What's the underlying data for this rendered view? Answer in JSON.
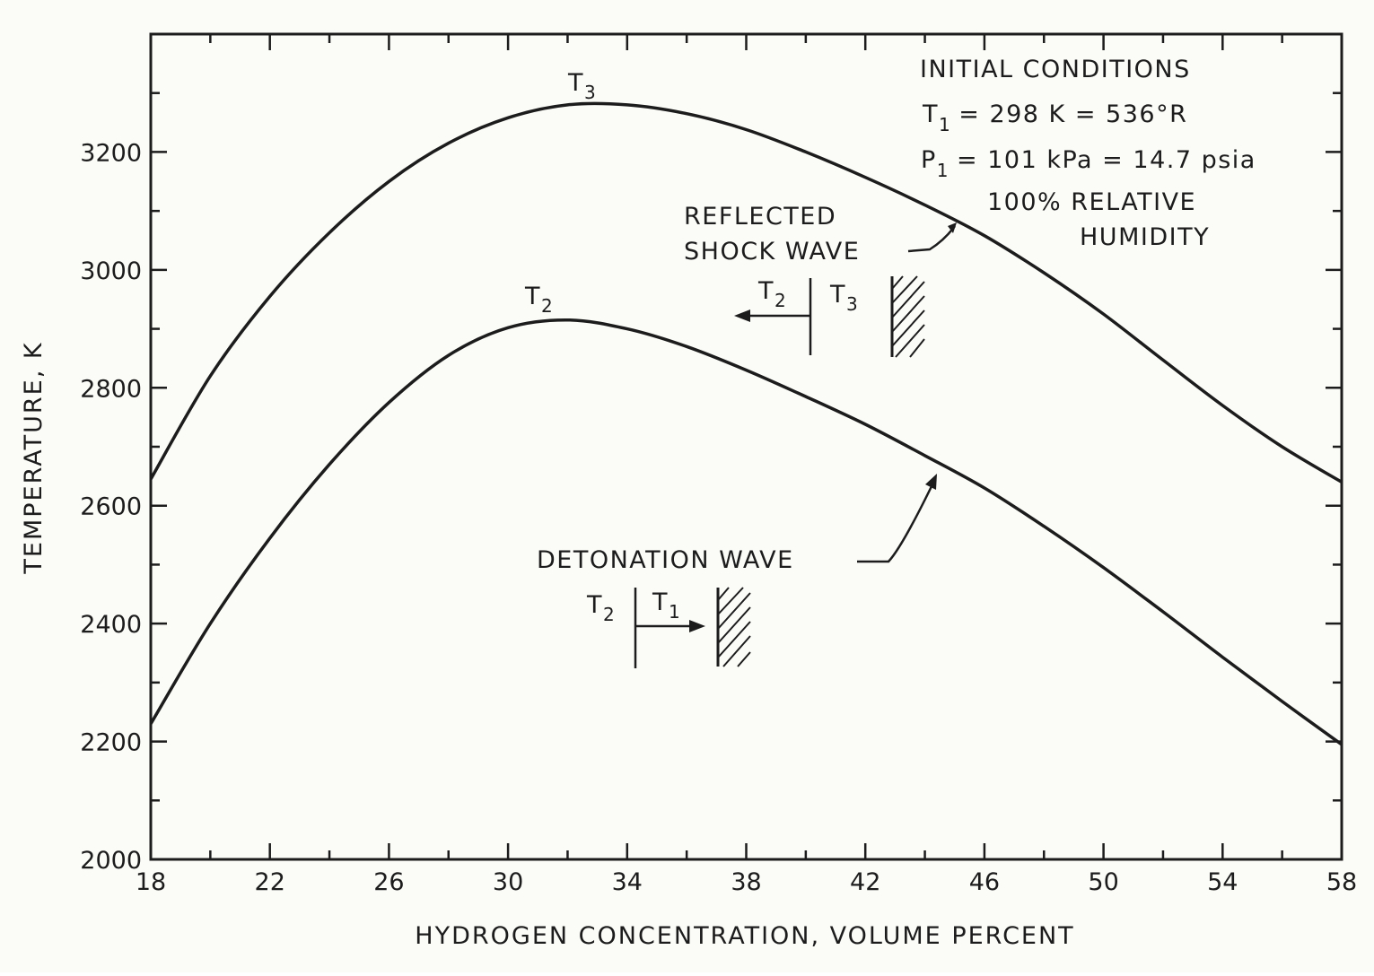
{
  "chart_data": {
    "type": "line",
    "xlabel": "HYDROGEN CONCENTRATION, VOLUME PERCENT",
    "ylabel": "TEMPERATURE, K",
    "xlim": [
      18,
      58
    ],
    "ylim": [
      2000,
      3400
    ],
    "x_ticks": [
      18,
      22,
      26,
      30,
      34,
      38,
      42,
      46,
      50,
      54,
      58
    ],
    "y_ticks": [
      2000,
      2200,
      2400,
      2600,
      2800,
      3000,
      3200
    ],
    "x_minor_step": 2,
    "y_minor_step": 100,
    "grid": false,
    "series": [
      {
        "name": "T₃",
        "x": [
          18,
          20,
          22,
          24,
          26,
          28,
          30,
          32,
          34,
          36,
          38,
          40,
          42,
          44,
          46,
          48,
          50,
          52,
          54,
          56,
          58
        ],
        "values": [
          2645,
          2820,
          2955,
          3063,
          3150,
          3215,
          3258,
          3280,
          3280,
          3265,
          3238,
          3200,
          3157,
          3110,
          3058,
          2995,
          2925,
          2847,
          2770,
          2700,
          2640
        ]
      },
      {
        "name": "T₂",
        "x": [
          18,
          20,
          22,
          24,
          26,
          28,
          30,
          32,
          34,
          36,
          38,
          40,
          42,
          44,
          46,
          48,
          50,
          52,
          54,
          56,
          58
        ],
        "values": [
          2230,
          2400,
          2545,
          2670,
          2775,
          2855,
          2902,
          2915,
          2900,
          2870,
          2830,
          2785,
          2738,
          2685,
          2630,
          2565,
          2495,
          2420,
          2343,
          2268,
          2195
        ]
      }
    ],
    "annotations": {
      "initial_conditions": {
        "heading": "INITIAL CONDITIONS",
        "t1_label": "T",
        "t1_sub": "1",
        "t1_value": "= 298 K = 536°R",
        "p1_label": "P",
        "p1_sub": "1",
        "p1_value": "= 101 kPa = 14.7 psia",
        "humidity_line1": "100% RELATIVE",
        "humidity_line2": "HUMIDITY"
      },
      "reflected_shock_line1": "REFLECTED",
      "reflected_shock_line2": "SHOCK WAVE",
      "detonation_wave": "DETONATION WAVE",
      "curve_label_upper": "T",
      "curve_label_upper_sub": "3",
      "curve_label_lower": "T",
      "curve_label_lower_sub": "2",
      "shock_sketch": {
        "left_label": "T",
        "left_sub": "2",
        "right_label": "T",
        "right_sub": "3"
      },
      "detonation_sketch": {
        "left_label": "T",
        "left_sub": "2",
        "right_label": "T",
        "right_sub": "1"
      }
    },
    "colors": {
      "ink": "#1c1c1c",
      "paper": "#fbfbf8"
    }
  }
}
